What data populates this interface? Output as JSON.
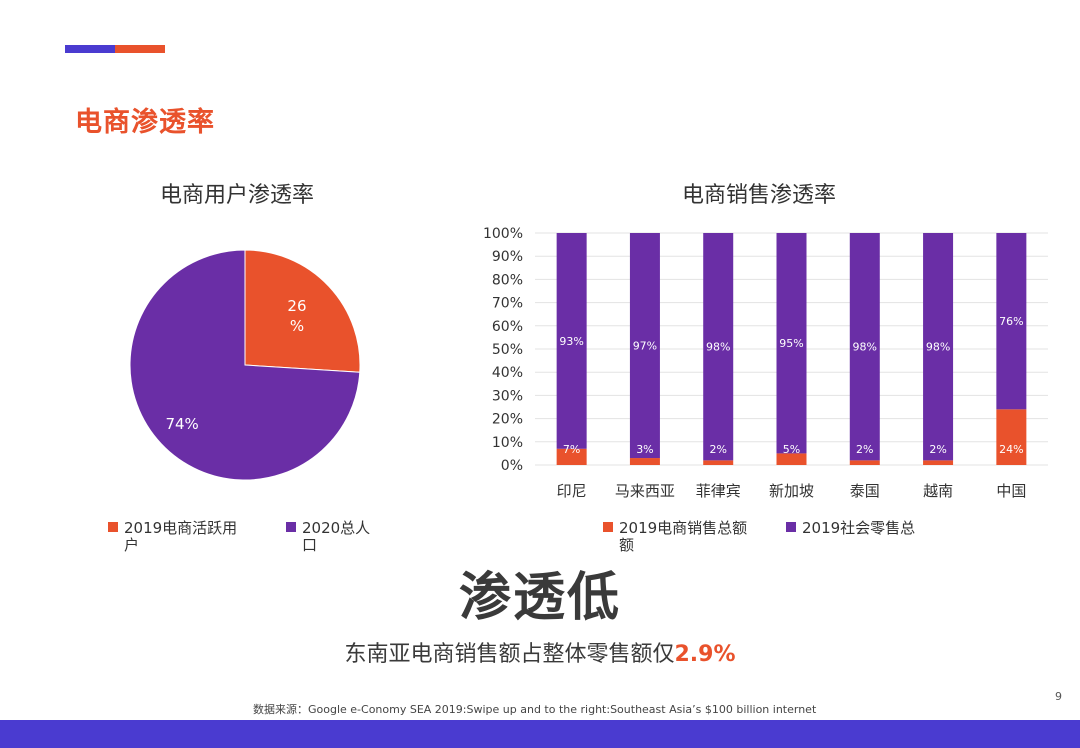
{
  "section_title": "电商渗透率",
  "colors": {
    "purple": "#6a2ea6",
    "orange": "#e9522c",
    "accent_blue": "#4a3bd0"
  },
  "chart_data": [
    {
      "type": "pie",
      "title": "电商用户渗透率",
      "slices": [
        {
          "label": "2019电商活跃用户",
          "value": 26,
          "display": "26\n%",
          "color": "#e9522c"
        },
        {
          "label": "2020总人口",
          "value": 74,
          "display": "74%",
          "color": "#6a2ea6"
        }
      ],
      "legend": {
        "placement": "bottom",
        "entries": [
          "2019电商活跃用\n户",
          "2020总人\n口"
        ]
      }
    },
    {
      "type": "bar",
      "stacked": true,
      "title": "电商销售渗透率",
      "categories": [
        "印尼",
        "马来西亚",
        "菲律宾",
        "新加坡",
        "泰国",
        "越南",
        "中国"
      ],
      "series": [
        {
          "name": "2019电商销售总额",
          "values": [
            7,
            3,
            2,
            5,
            2,
            2,
            24
          ],
          "color": "#e9522c"
        },
        {
          "name": "2019社会零售总",
          "values": [
            93,
            97,
            98,
            95,
            98,
            98,
            76
          ],
          "color": "#6a2ea6"
        }
      ],
      "data_labels": {
        "bottom": [
          "7%",
          "3%",
          "2%",
          "5%",
          "2%",
          "2%",
          "24%"
        ],
        "top": [
          "93%",
          "97%",
          "98%",
          "95%",
          "98%",
          "98%",
          "76%"
        ]
      },
      "ylim": [
        0,
        100
      ],
      "yticks": [
        "0%",
        "10%",
        "20%",
        "30%",
        "40%",
        "50%",
        "60%",
        "70%",
        "80%",
        "90%",
        "100%"
      ],
      "grid": true,
      "legend": {
        "placement": "bottom",
        "entries": [
          "2019电商销售总额\n额",
          "2019社会零售总"
        ]
      }
    }
  ],
  "headline": "渗透低",
  "subline": {
    "text": "东南亚电商销售额占整体零售额仅",
    "highlight": "2.9%"
  },
  "source": "数据来源：Google e-Conomy SEA 2019:Swipe up and to the right:Southeast Asia’s $100 billion internet",
  "page_number": "9"
}
